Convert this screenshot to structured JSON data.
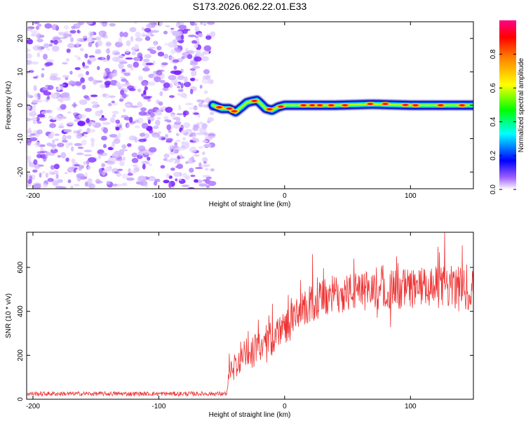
{
  "title": "S173.2026.062.22.01.E33",
  "chart_data": [
    {
      "type": "heatmap",
      "xlabel": "Height of straight line (km)",
      "ylabel": "Frequency (Hz)",
      "xlim": [
        -205,
        150
      ],
      "ylim": [
        -25,
        25
      ],
      "x_ticks": [
        -200,
        -100,
        0,
        100
      ],
      "y_ticks": [
        -20,
        -10,
        0,
        10,
        20
      ],
      "noise_region_x": [
        -205,
        -57
      ],
      "ridge": [
        {
          "x": -57,
          "f": 0.0
        },
        {
          "x": -50,
          "f": -1.0
        },
        {
          "x": -44,
          "f": -1.0
        },
        {
          "x": -39,
          "f": -2.0
        },
        {
          "x": -34,
          "f": -0.5
        },
        {
          "x": -30,
          "f": 0.8
        },
        {
          "x": -26,
          "f": 1.2
        },
        {
          "x": -22,
          "f": 1.5
        },
        {
          "x": -19,
          "f": 0.5
        },
        {
          "x": -15,
          "f": -1.0
        },
        {
          "x": -10,
          "f": -1.5
        },
        {
          "x": -5,
          "f": -0.5
        },
        {
          "x": 0,
          "f": 0.0
        },
        {
          "x": 10,
          "f": 0.0
        },
        {
          "x": 40,
          "f": 0.0
        },
        {
          "x": 70,
          "f": 0.3
        },
        {
          "x": 100,
          "f": 0.0
        },
        {
          "x": 150,
          "f": 0.0
        }
      ],
      "hotspots": [
        {
          "x": -52,
          "f": -0.6
        },
        {
          "x": -44,
          "f": -1.0
        },
        {
          "x": -40,
          "f": -1.8
        },
        {
          "x": -24,
          "f": 1.3
        },
        {
          "x": -12,
          "f": -1.2
        },
        {
          "x": -3,
          "f": -0.4
        },
        {
          "x": 15,
          "f": 0.0
        },
        {
          "x": 22,
          "f": 0.0
        },
        {
          "x": 28,
          "f": 0.0
        },
        {
          "x": 37,
          "f": 0.0
        },
        {
          "x": 48,
          "f": 0.0
        },
        {
          "x": 68,
          "f": 0.4
        },
        {
          "x": 80,
          "f": 0.4
        },
        {
          "x": 96,
          "f": 0.1
        },
        {
          "x": 104,
          "f": 0.0
        },
        {
          "x": 124,
          "f": 0.0
        },
        {
          "x": 141,
          "f": 0.0
        }
      ],
      "colorbar": {
        "label": "Normalized spectral amplitude",
        "ticks": [
          "0.0",
          "0.2",
          "0.4",
          "0.6",
          "0.8"
        ],
        "range": [
          0,
          1
        ]
      }
    },
    {
      "type": "line",
      "xlabel": "Height of straight line (km)",
      "ylabel": "SNR (10 * v/v)",
      "xlim": [
        -205,
        150
      ],
      "ylim": [
        0,
        760
      ],
      "x_ticks": [
        -200,
        -100,
        0,
        100
      ],
      "y_ticks": [
        0,
        200,
        400,
        600
      ],
      "series": [
        {
          "name": "SNR",
          "color": "#ee3333",
          "envelope": [
            {
              "x": -205,
              "mean": 25,
              "spread": 10
            },
            {
              "x": -46,
              "mean": 25,
              "spread": 10
            },
            {
              "x": -44,
              "mean": 100,
              "spread": 60
            },
            {
              "x": -40,
              "mean": 150,
              "spread": 60
            },
            {
              "x": -35,
              "mean": 180,
              "spread": 70
            },
            {
              "x": -28,
              "mean": 210,
              "spread": 80
            },
            {
              "x": -20,
              "mean": 240,
              "spread": 80
            },
            {
              "x": -10,
              "mean": 280,
              "spread": 80
            },
            {
              "x": 0,
              "mean": 330,
              "spread": 80
            },
            {
              "x": 10,
              "mean": 380,
              "spread": 80
            },
            {
              "x": 20,
              "mean": 430,
              "spread": 90
            },
            {
              "x": 40,
              "mean": 480,
              "spread": 90
            },
            {
              "x": 80,
              "mean": 500,
              "spread": 90
            },
            {
              "x": 130,
              "mean": 510,
              "spread": 100
            },
            {
              "x": 150,
              "mean": 500,
              "spread": 100
            }
          ],
          "peaks": [
            {
              "x": 127,
              "y": 760
            },
            {
              "x": 141,
              "y": 700
            },
            {
              "x": 22,
              "y": 660
            },
            {
              "x": 89,
              "y": 650
            },
            {
              "x": 55,
              "y": 640
            }
          ]
        }
      ]
    }
  ]
}
